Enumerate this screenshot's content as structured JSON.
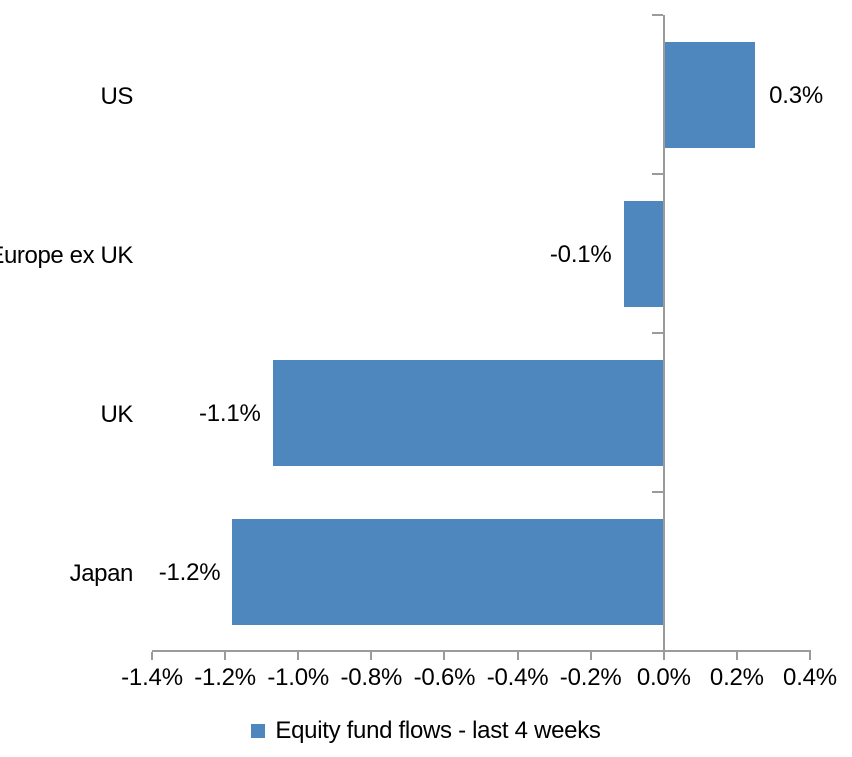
{
  "chart_data": {
    "type": "bar",
    "orientation": "horizontal",
    "title": "",
    "categories": [
      "US",
      "Europe ex UK",
      "UK",
      "Japan"
    ],
    "series": [
      {
        "name": "Equity fund flows - last 4 weeks",
        "values_pct": [
          0.25,
          -0.11,
          -1.07,
          -1.18
        ],
        "data_labels": [
          "0.3%",
          "-0.1%",
          "-1.1%",
          "-1.2%"
        ]
      }
    ],
    "x_axis": {
      "min_pct": -1.4,
      "max_pct": 0.4,
      "tick_step_pct": 0.2,
      "tick_labels": [
        "-1.4%",
        "-1.2%",
        "-1.0%",
        "-0.8%",
        "-0.6%",
        "-0.4%",
        "-0.2%",
        "0.0%",
        "0.2%",
        "0.4%"
      ]
    },
    "legend": {
      "label": "Equity fund flows - last 4 weeks",
      "position": "bottom"
    },
    "colors": {
      "bar": "#4E86BE",
      "axis": "#9B9B9B",
      "text": "#000000",
      "background": "#FFFFFF"
    },
    "gridlines": false
  }
}
